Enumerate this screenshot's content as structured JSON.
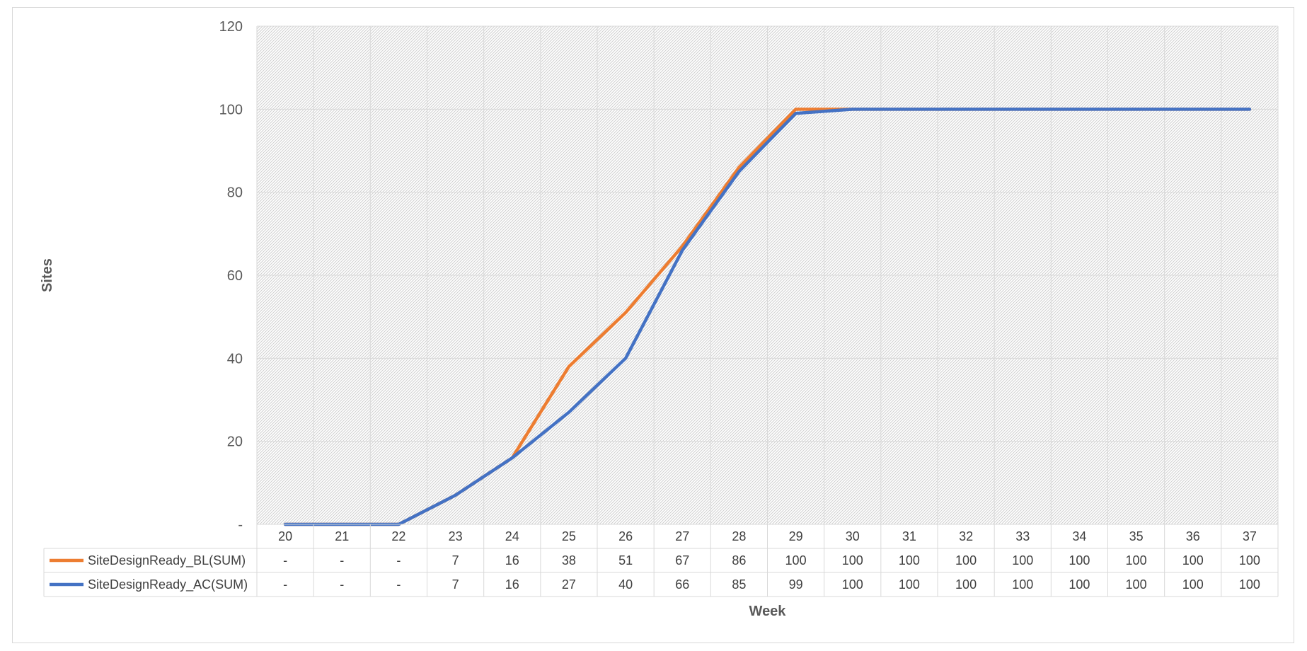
{
  "chart_data": {
    "type": "line",
    "title": "",
    "xlabel": "Week",
    "ylabel": "Sites",
    "ylim": [
      0,
      120
    ],
    "y_ticks": [
      0,
      20,
      40,
      60,
      80,
      100,
      120
    ],
    "y_tick_labels": [
      "-",
      "20",
      "40",
      "60",
      "80",
      "100",
      "120"
    ],
    "grid": true,
    "legend_position": "data-table",
    "categories": [
      "20",
      "21",
      "22",
      "23",
      "24",
      "25",
      "26",
      "27",
      "28",
      "29",
      "30",
      "31",
      "32",
      "33",
      "34",
      "35",
      "36",
      "37"
    ],
    "series": [
      {
        "name": "SiteDesignReady_BL(SUM)",
        "color": "#ED7D31",
        "values": [
          0,
          0,
          0,
          7,
          16,
          38,
          51,
          67,
          86,
          100,
          100,
          100,
          100,
          100,
          100,
          100,
          100,
          100
        ],
        "labels": [
          "-",
          "-",
          "-",
          "7",
          "16",
          "38",
          "51",
          "67",
          "86",
          "100",
          "100",
          "100",
          "100",
          "100",
          "100",
          "100",
          "100",
          "100"
        ]
      },
      {
        "name": "SiteDesignReady_AC(SUM)",
        "color": "#4472C4",
        "values": [
          0,
          0,
          0,
          7,
          16,
          27,
          40,
          66,
          85,
          99,
          100,
          100,
          100,
          100,
          100,
          100,
          100,
          100
        ],
        "labels": [
          "-",
          "-",
          "-",
          "7",
          "16",
          "27",
          "40",
          "66",
          "85",
          "99",
          "100",
          "100",
          "100",
          "100",
          "100",
          "100",
          "100",
          "100"
        ]
      }
    ]
  }
}
